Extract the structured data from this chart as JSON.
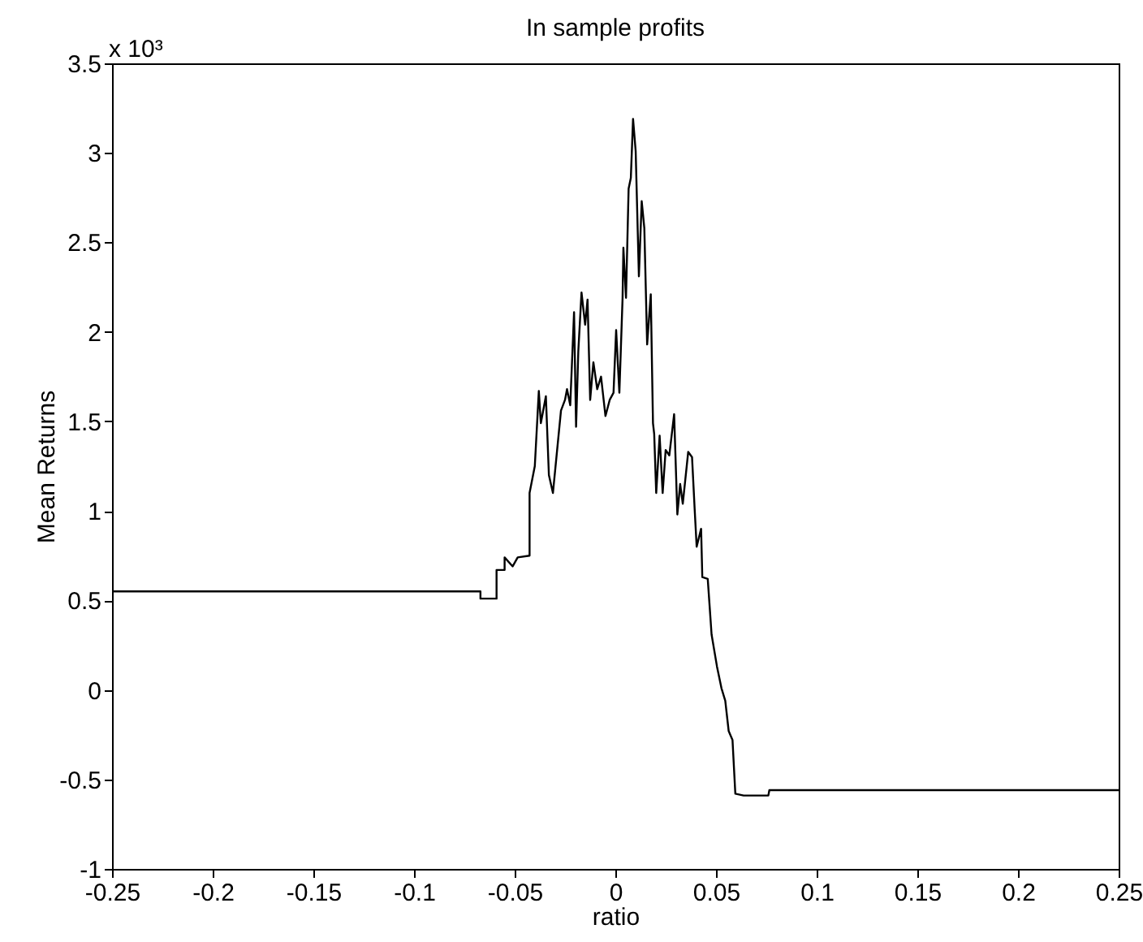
{
  "chart_data": {
    "type": "line",
    "title": "In sample profits",
    "xlabel": "ratio",
    "ylabel": "Mean Returns",
    "annotations": [
      "x 10³"
    ],
    "x": [
      -0.25,
      -0.067,
      -0.067,
      -0.059,
      -0.059,
      -0.055,
      -0.055,
      -0.051,
      -0.0485,
      -0.0426,
      -0.0426,
      -0.04,
      -0.038,
      -0.037,
      -0.0345,
      -0.033,
      -0.031,
      -0.027,
      -0.025,
      -0.024,
      -0.0224,
      -0.0205,
      -0.0195,
      -0.0184,
      -0.0168,
      -0.015,
      -0.0138,
      -0.0125,
      -0.0109,
      -0.009,
      -0.0071,
      -0.0049,
      -0.0028,
      -0.0009,
      0.0004,
      0.002,
      0.0036,
      0.004,
      0.0053,
      0.0066,
      0.0077,
      0.0088,
      0.0101,
      0.0117,
      0.0131,
      0.0144,
      0.0158,
      0.0176,
      0.0187,
      0.0193,
      0.0203,
      0.022,
      0.0235,
      0.025,
      0.0268,
      0.0292,
      0.0308,
      0.0322,
      0.0335,
      0.0362,
      0.0381,
      0.0394,
      0.0404,
      0.0426,
      0.0432,
      0.0459,
      0.0478,
      0.0505,
      0.0527,
      0.0546,
      0.0563,
      0.0582,
      0.0596,
      0.0637,
      0.076,
      0.0765,
      0.25
    ],
    "series": [
      {
        "color": "#000000",
        "values": [
          0.55,
          0.55,
          0.51,
          0.51,
          0.67,
          0.67,
          0.74,
          0.69,
          0.74,
          0.75,
          1.1,
          1.25,
          1.67,
          1.49,
          1.64,
          1.2,
          1.1,
          1.56,
          1.62,
          1.68,
          1.59,
          2.11,
          1.47,
          1.89,
          2.22,
          2.04,
          2.18,
          1.62,
          1.83,
          1.68,
          1.75,
          1.53,
          1.62,
          1.66,
          2.01,
          1.66,
          2.19,
          2.47,
          2.19,
          2.8,
          2.86,
          3.19,
          3.01,
          2.31,
          2.73,
          2.58,
          1.93,
          2.21,
          1.49,
          1.43,
          1.1,
          1.42,
          1.1,
          1.34,
          1.31,
          1.54,
          0.98,
          1.15,
          1.04,
          1.33,
          1.3,
          1.01,
          0.8,
          0.9,
          0.63,
          0.62,
          0.31,
          0.13,
          0.01,
          -0.06,
          -0.23,
          -0.28,
          -0.58,
          -0.59,
          -0.59,
          -0.56,
          -0.56
        ]
      }
    ],
    "xlim": [
      -0.25,
      0.25
    ],
    "ylim": [
      -1,
      3.5
    ],
    "xticks": [
      -0.25,
      -0.2,
      -0.15,
      -0.1,
      -0.05,
      0,
      0.05,
      0.1,
      0.15,
      0.2,
      0.25
    ],
    "yticks": [
      -1,
      -0.5,
      0,
      0.5,
      1,
      1.5,
      2,
      2.5,
      3,
      3.5
    ],
    "grid": false,
    "line_style": "solid"
  }
}
